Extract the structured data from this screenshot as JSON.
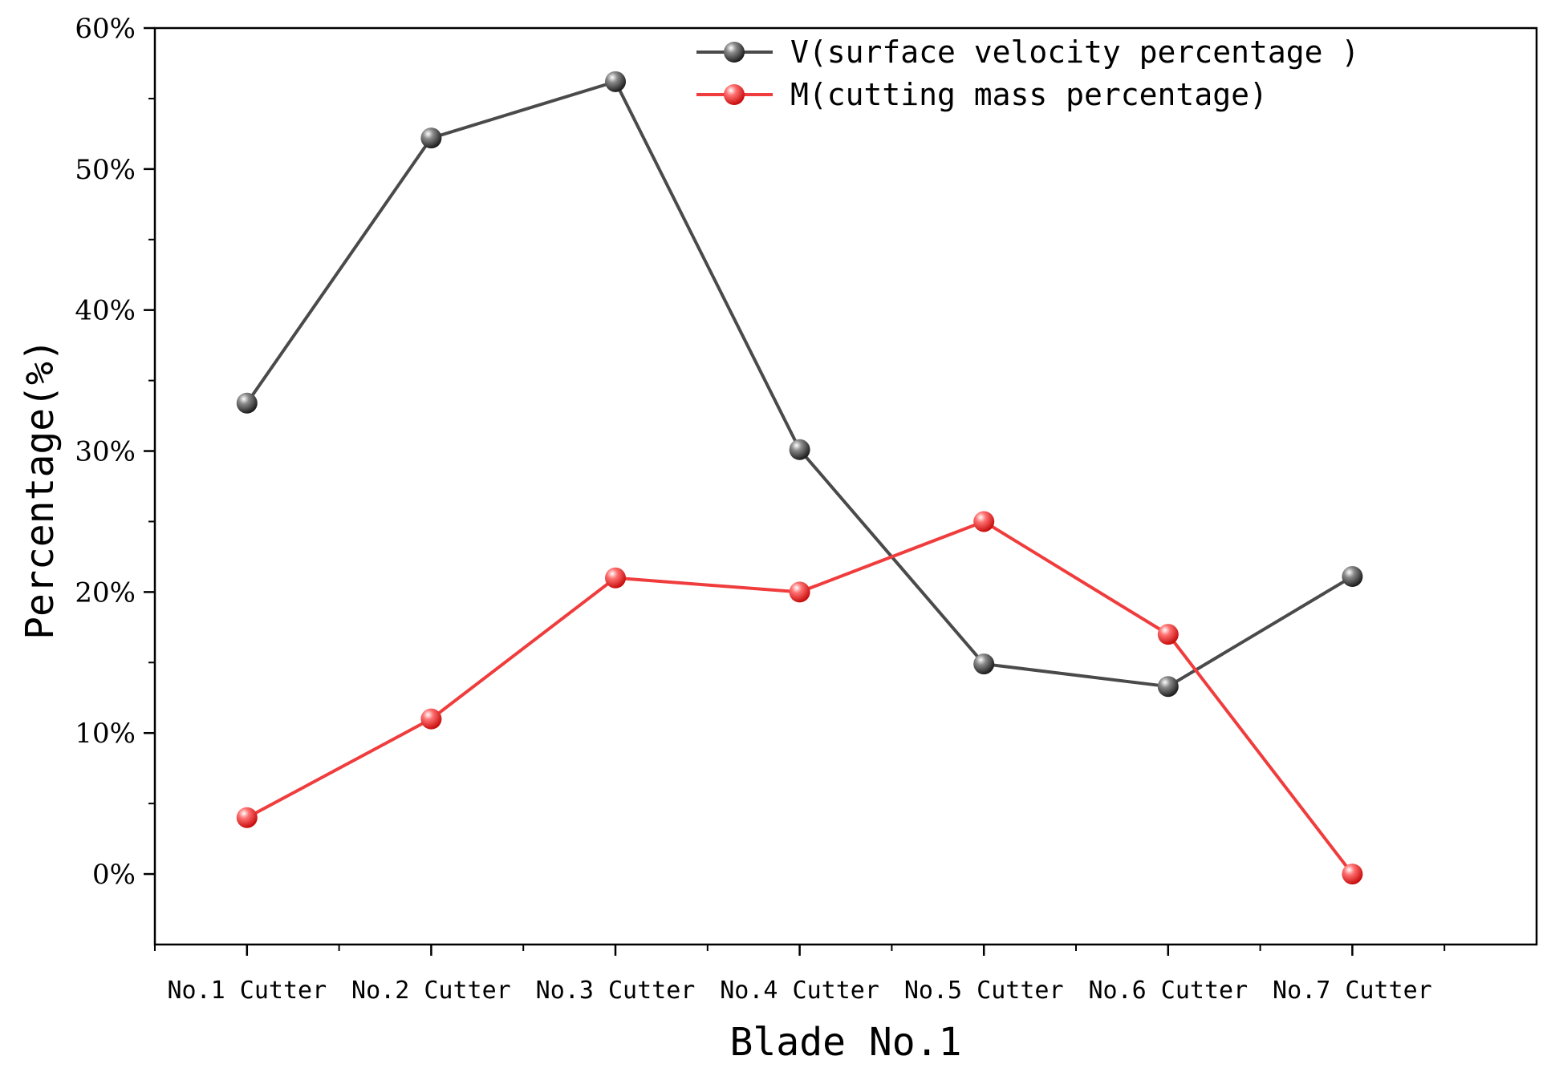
{
  "chart_data": {
    "type": "line",
    "title": "",
    "xlabel": "Blade No.1",
    "ylabel": "Percentage(%)",
    "categories": [
      "No.1 Cutter",
      "No.2 Cutter",
      "No.3 Cutter",
      "No.4 Cutter",
      "No.5 Cutter",
      "No.6 Cutter",
      "No.7 Cutter"
    ],
    "ylim": [
      -5,
      60
    ],
    "yticks": [
      0,
      10,
      20,
      30,
      40,
      50,
      60
    ],
    "ytick_labels": [
      "0%",
      "10%",
      "20%",
      "30%",
      "40%",
      "50%",
      "60%"
    ],
    "grid": false,
    "legend_position": "top-right",
    "series": [
      {
        "name": "V(surface velocity percentage )",
        "color": "#4a4a4a",
        "values": [
          33.4,
          52.2,
          56.2,
          30.1,
          14.9,
          13.3,
          21.1
        ]
      },
      {
        "name": "M(cutting mass percentage)",
        "color": "#f03c3c",
        "values": [
          4.0,
          11.0,
          21.0,
          20.0,
          25.0,
          17.0,
          0.0
        ]
      }
    ]
  }
}
